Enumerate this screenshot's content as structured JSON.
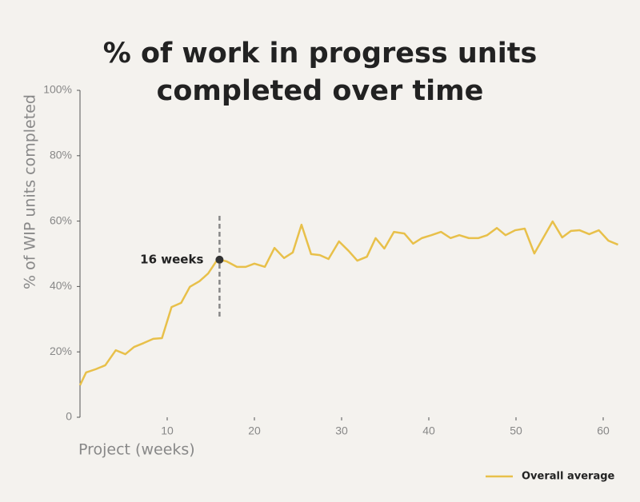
{
  "chart_data": {
    "type": "line",
    "title": [
      "% of work in progress units",
      "completed over time"
    ],
    "x_label": "Project (weeks)",
    "y_label": "% of WIP units completed",
    "xlim": [
      0,
      62
    ],
    "xticks": [
      10,
      20,
      30,
      40,
      50,
      60
    ],
    "ylim": [
      0,
      100
    ],
    "yticks": [
      0,
      {
        "value": 20,
        "label": "20%"
      },
      {
        "value": 40,
        "label": "40%"
      },
      {
        "value": 60,
        "label": "60%"
      },
      {
        "value": 80,
        "label": "80%"
      },
      {
        "value": 100,
        "label": "100%"
      }
    ],
    "legend": "lower right",
    "grid": false,
    "annotation": {
      "text": "16 weeks",
      "x": 16,
      "y": 48.2
    },
    "series": [
      {
        "name": "Overall average",
        "color": "#e8c04a",
        "x": [
          0,
          0.7,
          1.8,
          2.9,
          4.1,
          5.2,
          6.2,
          7.3,
          8.4,
          9.4,
          10.5,
          11.6,
          12.6,
          13.7,
          14.7,
          15.7,
          16,
          16.8,
          18,
          19,
          20,
          21.2,
          22.3,
          23.4,
          24.4,
          25.4,
          26.5,
          27.5,
          28.5,
          29.7,
          30.8,
          31.8,
          32.9,
          33.9,
          34.9,
          36,
          37.2,
          38.2,
          39.2,
          40.3,
          41.4,
          42.5,
          43.5,
          44.6,
          45.7,
          46.7,
          47.8,
          48.8,
          49.9,
          51,
          52.1,
          54.2,
          55.3,
          56.3,
          57.3,
          58.4,
          59.5,
          60.6,
          61.7
        ],
        "values": [
          9.8,
          13.7,
          14.7,
          15.9,
          20.5,
          19.3,
          21.5,
          22.7,
          24,
          24.2,
          33.7,
          35,
          39.9,
          41.6,
          44,
          48,
          48.2,
          47.7,
          46,
          46,
          47,
          46,
          51.8,
          48.7,
          50.4,
          58.9,
          49.9,
          49.6,
          48.4,
          53.8,
          50.9,
          47.9,
          49.1,
          54.8,
          51.6,
          56.7,
          56.2,
          53.1,
          54.8,
          55.7,
          56.7,
          54.8,
          55.7,
          54.8,
          54.8,
          55.7,
          57.9,
          55.7,
          57.2,
          57.7,
          50.1,
          59.9,
          55,
          57,
          57.2,
          56,
          57.2,
          54,
          52.8
        ]
      }
    ]
  }
}
